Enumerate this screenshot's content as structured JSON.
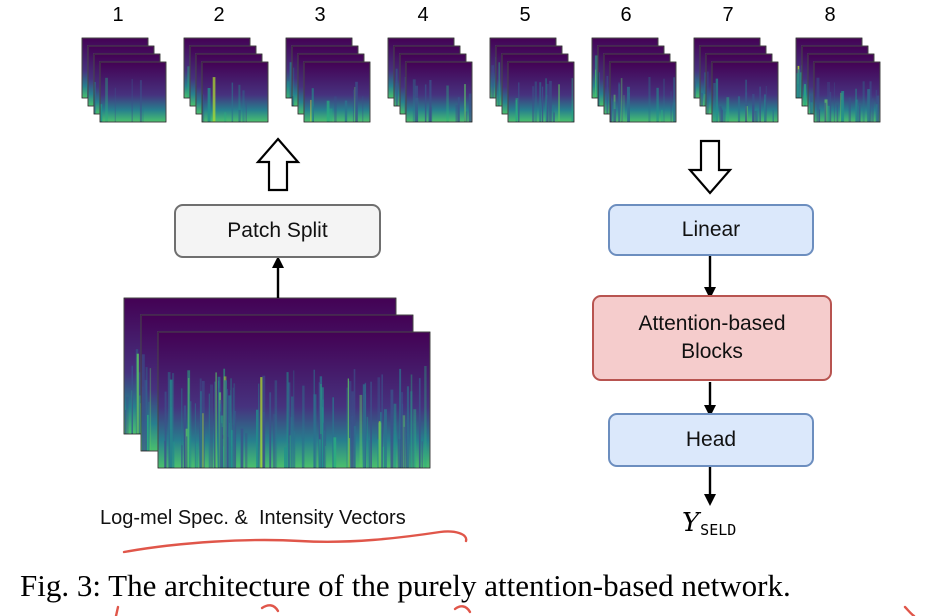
{
  "patch_numbers": [
    "1",
    "2",
    "3",
    "4",
    "5",
    "6",
    "7",
    "8"
  ],
  "nodes": {
    "patch_split": "Patch Split",
    "linear": "Linear",
    "attention": [
      "Attention-based",
      "Blocks"
    ],
    "head": "Head"
  },
  "output_label": {
    "main": "Y",
    "subscript": "SELD"
  },
  "input_label": "Log-mel Spec. &  Intensity Vectors",
  "caption": "Fig. 3: The architecture of the purely attention-based network.",
  "colors": {
    "grey_fill": "#f4f4f4",
    "grey_stroke": "#6f6f6f",
    "blue_fill": "#dbe8fb",
    "blue_stroke": "#6c8ebf",
    "red_fill": "#f5cccc",
    "red_stroke": "#b85450",
    "spectrogram_dark": "#440154",
    "spectrogram_mid": "#21918c",
    "spectrogram_bright": "#fde725",
    "annotation_ink": "#e0564a"
  },
  "icons": [
    "hollow-up-arrow-icon",
    "hollow-down-arrow-icon"
  ]
}
